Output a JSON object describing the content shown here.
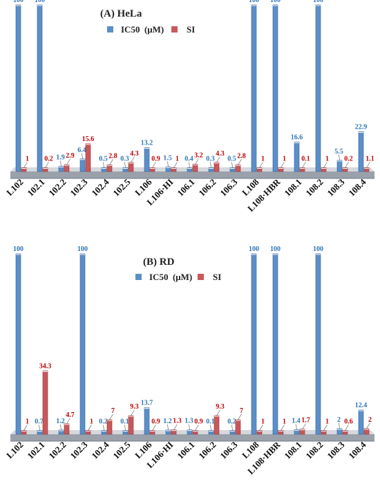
{
  "chart_data": [
    {
      "type": "bar",
      "title": "(A)   HeLa",
      "categories": [
        "L102",
        "102.1",
        "102.2",
        "102.3",
        "102.4",
        "102.5",
        "L106",
        "L106·HI",
        "106.1",
        "106.2",
        "106.3",
        "L108",
        "L108·HBR",
        "108.1",
        "108.2",
        "108.3",
        "108.4"
      ],
      "series": [
        {
          "name": "IC50  (μM)",
          "color": "#5b8fc9",
          "values": [
            100,
            100,
            1.9,
            6.4,
            0.5,
            0.3,
            13.2,
            1.5,
            0.4,
            0.3,
            0.5,
            100,
            100,
            16.6,
            100,
            5.5,
            22.9
          ],
          "labels": [
            "100",
            "100",
            "1.9",
            "6.4",
            "0.5",
            "0.3",
            "13.2",
            "1.5",
            "0.4",
            "0.3",
            "0.5",
            "100",
            "100",
            "16.6",
            "100",
            "5.5",
            "22.9"
          ]
        },
        {
          "name": "SI",
          "color": "#c9585a",
          "values": [
            1,
            0.2,
            2.9,
            15.6,
            2.8,
            4.3,
            0.9,
            1,
            3.2,
            4.3,
            2.8,
            1,
            1,
            0.1,
            1,
            0.2,
            1.1
          ],
          "labels": [
            "1",
            "0.2",
            "2.9",
            "15.6",
            "2.8",
            "4.3",
            "0.9",
            "1",
            "3.2",
            "4.3",
            "2.8",
            "1",
            "1",
            "0.1",
            "1",
            "0.2",
            "1.1"
          ]
        }
      ],
      "ylim": [
        0,
        100
      ],
      "legend_position": "top-center",
      "grid": false
    },
    {
      "type": "bar",
      "title": "(B)    RD",
      "categories": [
        "L102",
        "102.1",
        "102.2",
        "102.3",
        "102.4",
        "102.5",
        "L106",
        "L106·HI",
        "106.1",
        "106.2",
        "106.3",
        "L108",
        "L108·HBR",
        "108.1",
        "108.2",
        "108.3",
        "108.4"
      ],
      "series": [
        {
          "name": "IC50  (μM)",
          "color": "#5b8fc9",
          "values": [
            100,
            0.7,
            1.2,
            100,
            0.2,
            0.1,
            13.7,
            1.2,
            1.3,
            0.1,
            0.2,
            100,
            100,
            1.4,
            100,
            2,
            12.4
          ],
          "labels": [
            "100",
            "0.7",
            "1.2",
            "100",
            "0.2",
            "0.1",
            "13.7",
            "1.2",
            "1.3",
            "0.1",
            "0.2",
            "100",
            "100",
            "1.4",
            "100",
            "2",
            "12.4"
          ]
        },
        {
          "name": "SI",
          "color": "#c9585a",
          "values": [
            1,
            34.3,
            4.7,
            1,
            7,
            9.3,
            0.9,
            1.3,
            0.9,
            9.3,
            7,
            1,
            1,
            1.7,
            1,
            0.6,
            2
          ],
          "labels": [
            "1",
            "34.3",
            "4.7",
            "1",
            "7",
            "9.3",
            "0.9",
            "1.3",
            "0.9",
            "9.3",
            "7",
            "1",
            "1",
            "1.7",
            "1",
            "0.6",
            "2"
          ]
        }
      ],
      "ylim": [
        0,
        100
      ],
      "legend_position": "top-center",
      "grid": false
    }
  ]
}
